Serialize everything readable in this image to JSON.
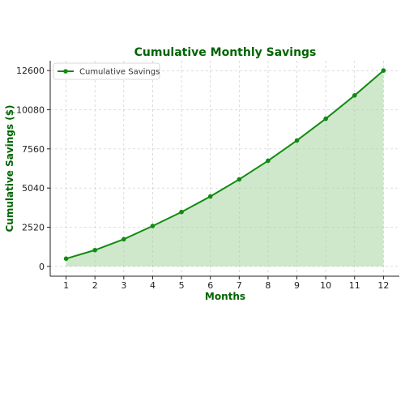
{
  "chart_data": {
    "type": "area",
    "title": "Cumulative Monthly Savings",
    "xlabel": "Months",
    "ylabel": "Cumulative Savings ($)",
    "x": [
      1,
      2,
      3,
      4,
      5,
      6,
      7,
      8,
      9,
      10,
      11,
      12
    ],
    "xticks": [
      "1",
      "2",
      "3",
      "4",
      "5",
      "6",
      "7",
      "8",
      "9",
      "10",
      "11",
      "12"
    ],
    "yticks": [
      "0",
      "2520",
      "5040",
      "7560",
      "10080",
      "12600"
    ],
    "ytick_values": [
      0,
      2520,
      5040,
      7560,
      10080,
      12600
    ],
    "xlim": [
      0.45,
      12.55
    ],
    "ylim": [
      -630,
      13230
    ],
    "grid": true,
    "legend_position": "top-left",
    "series": [
      {
        "name": "Cumulative Savings",
        "values": [
          500,
          1050,
          1750,
          2600,
          3500,
          4500,
          5600,
          6800,
          8100,
          9500,
          11000,
          12600
        ]
      }
    ],
    "colors": {
      "line": "#118a11",
      "fill": "#a8d5a2",
      "title": "#006400",
      "axis_title": "#006400",
      "grid": "#cccccc"
    }
  }
}
